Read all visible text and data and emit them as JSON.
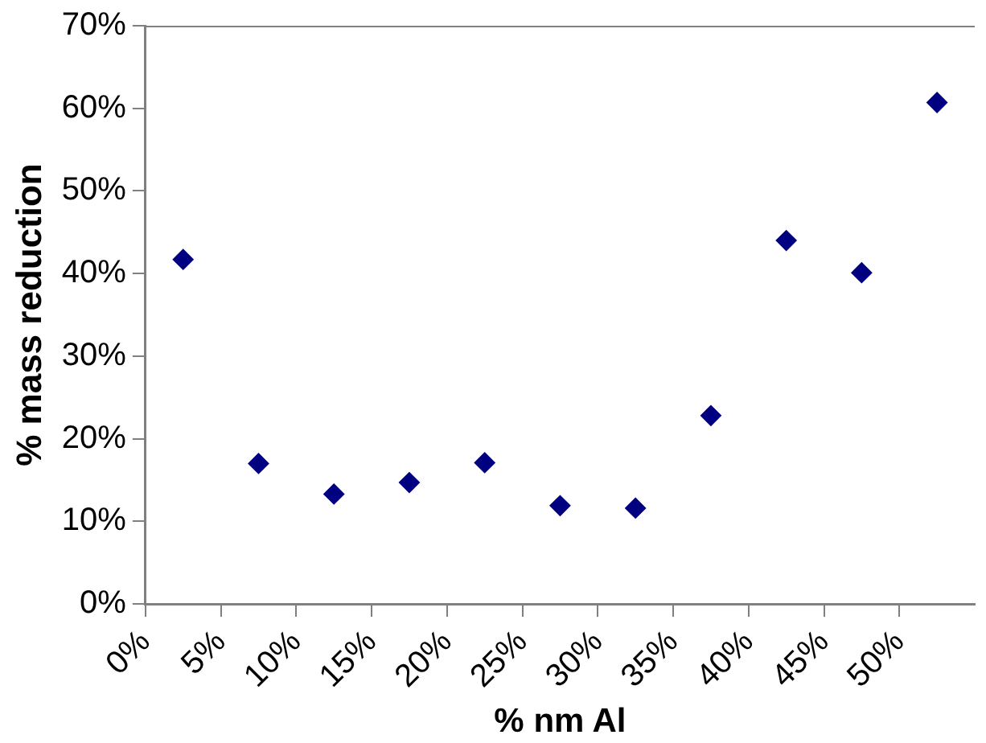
{
  "chart_data": {
    "type": "scatter",
    "xlabel": "% nm Al",
    "ylabel": "% mass reduction",
    "x": [
      2.5,
      7.5,
      12.5,
      17.5,
      22.5,
      27.5,
      32.5,
      37.5,
      42.5,
      47.5,
      52.5
    ],
    "series": [
      {
        "color": "#000080",
        "values": [
          41.7,
          17.0,
          13.3,
          14.7,
          17.1,
          11.9,
          11.6,
          22.8,
          44.0,
          40.1,
          60.7
        ]
      }
    ],
    "xlim": [
      0,
      55
    ],
    "xticks": [
      {
        "value": 0,
        "label": "0%"
      },
      {
        "value": 5,
        "label": "5%"
      },
      {
        "value": 10,
        "label": "10%"
      },
      {
        "value": 15,
        "label": "15%"
      },
      {
        "value": 20,
        "label": "20%"
      },
      {
        "value": 25,
        "label": "25%"
      },
      {
        "value": 30,
        "label": "30%"
      },
      {
        "value": 35,
        "label": "35%"
      },
      {
        "value": 40,
        "label": "40%"
      },
      {
        "value": 45,
        "label": "45%"
      },
      {
        "value": 50,
        "label": "50%"
      }
    ],
    "ylim": [
      0,
      70
    ],
    "yticks": [
      {
        "value": 0,
        "label": "0%"
      },
      {
        "value": 10,
        "label": "10%"
      },
      {
        "value": 20,
        "label": "20%"
      },
      {
        "value": 30,
        "label": "30%"
      },
      {
        "value": 40,
        "label": "40%"
      },
      {
        "value": 50,
        "label": "50%"
      },
      {
        "value": 60,
        "label": "60%"
      },
      {
        "value": 70,
        "label": "70%"
      }
    ],
    "grid": false,
    "legend": false,
    "marker": "diamond"
  }
}
